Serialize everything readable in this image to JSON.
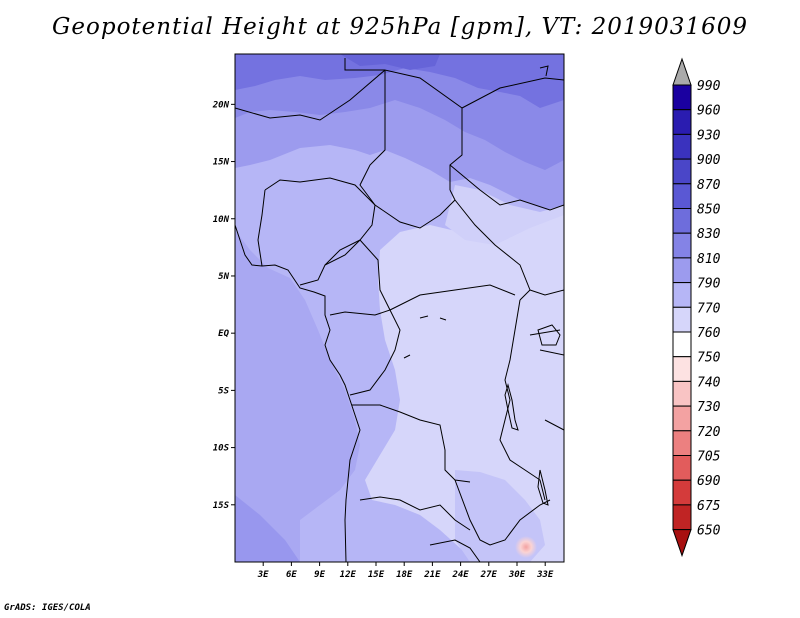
{
  "title": "Geopotential Height at 925hPa [gpm], VT: 2019031609",
  "credit": "GrADS: IGES/COLA",
  "map": {
    "lat_labels": [
      "20N",
      "15N",
      "10N",
      "5N",
      "EQ",
      "5S",
      "10S",
      "15S"
    ],
    "lat_values": [
      20,
      15,
      10,
      5,
      0,
      -5,
      -10,
      -15
    ],
    "lon_labels": [
      "3E",
      "6E",
      "9E",
      "12E",
      "15E",
      "18E",
      "21E",
      "24E",
      "27E",
      "30E",
      "33E"
    ],
    "lon_values": [
      3,
      6,
      9,
      12,
      15,
      18,
      21,
      24,
      27,
      30,
      33
    ]
  },
  "colorbar": {
    "labels": [
      "990",
      "960",
      "930",
      "900",
      "870",
      "850",
      "830",
      "810",
      "790",
      "770",
      "760",
      "750",
      "740",
      "730",
      "720",
      "705",
      "690",
      "675",
      "650"
    ],
    "colors": [
      "#1a00a0",
      "#2a1cb0",
      "#3a32be",
      "#4a46c8",
      "#5a58d4",
      "#6e6ddc",
      "#8483e6",
      "#9c9bee",
      "#b6b6f6",
      "#d6d6fa",
      "#ffffff",
      "#fde2e2",
      "#f9c4c4",
      "#f3a2a2",
      "#ec8080",
      "#e25c5c",
      "#d43b3b",
      "#c02424",
      "#a81010"
    ],
    "top_arrow_color": "#aaaaaa"
  }
}
